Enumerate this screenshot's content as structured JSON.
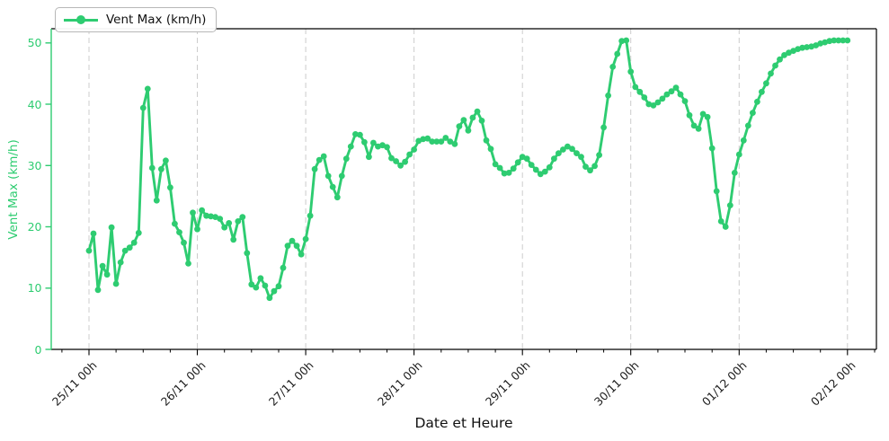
{
  "legend": {
    "label": "Vent Max (km/h)"
  },
  "axes": {
    "x_label": "Date et Heure",
    "y_label": "Vent Max (km/h)",
    "x_tick_labels": [
      "25/11 00h",
      "26/11 00h",
      "27/11 00h",
      "28/11 00h",
      "29/11 00h",
      "30/11 00h",
      "01/12 00h",
      "02/12 00h"
    ],
    "y_tick_labels": [
      "0",
      "10",
      "20",
      "30",
      "40",
      "50"
    ]
  },
  "colors": {
    "series": "#2ecc71",
    "y_axis": "#2ecc71",
    "x_text": "#1c1c1c",
    "grid": "#cccccc",
    "spine": "#000000",
    "legend_border": "#b7b7b7"
  },
  "chart_data": {
    "type": "line",
    "title": "",
    "xlabel": "Date et Heure",
    "ylabel": "Vent Max (km/h)",
    "x_start": "25/11 00h",
    "x_end": "02/12 00h",
    "x_interval_hours": 1,
    "x_tick_labels": [
      "25/11 00h",
      "26/11 00h",
      "27/11 00h",
      "28/11 00h",
      "29/11 00h",
      "30/11 00h",
      "01/12 00h",
      "02/12 00h"
    ],
    "y_ticks": [
      0,
      10,
      20,
      30,
      40,
      50
    ],
    "ylim": [
      0,
      52.3
    ],
    "xlim_hours": [
      -8.4,
      174.4
    ],
    "grid": "vertical dashed gridlines at each day",
    "legend_position": "upper left",
    "marker": "circle",
    "series": [
      {
        "name": "Vent Max (km/h)",
        "color": "#2ecc71",
        "values": [
          16.1,
          18.9,
          9.7,
          13.6,
          12.2,
          19.9,
          10.7,
          14.2,
          16.1,
          16.6,
          17.4,
          19.0,
          39.4,
          42.5,
          29.6,
          24.3,
          29.4,
          30.8,
          26.4,
          20.5,
          19.1,
          17.4,
          14.0,
          22.3,
          19.6,
          22.7,
          21.8,
          21.7,
          21.6,
          21.3,
          19.9,
          20.6,
          17.9,
          20.9,
          21.6,
          15.7,
          10.6,
          10.1,
          11.6,
          10.4,
          8.4,
          9.5,
          10.3,
          13.3,
          16.9,
          17.7,
          16.9,
          15.5,
          18.0,
          21.8,
          29.4,
          30.9,
          31.5,
          28.3,
          26.5,
          24.8,
          28.3,
          31.1,
          33.1,
          35.1,
          35.0,
          33.8,
          31.4,
          33.7,
          33.1,
          33.3,
          33.0,
          31.2,
          30.7,
          30.0,
          30.6,
          31.8,
          32.6,
          34.0,
          34.3,
          34.4,
          33.9,
          33.9,
          33.9,
          34.5,
          33.9,
          33.5,
          36.4,
          37.4,
          35.7,
          37.8,
          38.8,
          37.3,
          34.1,
          32.7,
          30.2,
          29.6,
          28.7,
          28.8,
          29.5,
          30.5,
          31.4,
          31.1,
          30.1,
          29.3,
          28.6,
          29.0,
          29.7,
          31.1,
          32.0,
          32.6,
          33.1,
          32.7,
          32.0,
          31.4,
          29.8,
          29.2,
          29.9,
          31.7,
          36.2,
          41.4,
          46.1,
          48.2,
          50.3,
          50.4,
          45.3,
          42.8,
          42.0,
          41.1,
          40.0,
          39.8,
          40.3,
          40.9,
          41.6,
          42.1,
          42.7,
          41.6,
          40.5,
          38.2,
          36.5,
          36.0,
          38.4,
          37.9,
          32.8,
          25.8,
          20.9,
          20.0,
          23.5,
          28.8,
          31.8,
          34.1,
          36.5,
          38.6,
          40.4,
          42.0,
          43.4,
          45.0,
          46.3,
          47.3,
          48.0,
          48.4,
          48.7,
          49.0,
          49.2,
          49.3,
          49.4,
          49.6,
          49.9,
          50.1,
          50.3,
          50.4,
          50.4,
          50.4,
          50.4
        ]
      }
    ]
  }
}
